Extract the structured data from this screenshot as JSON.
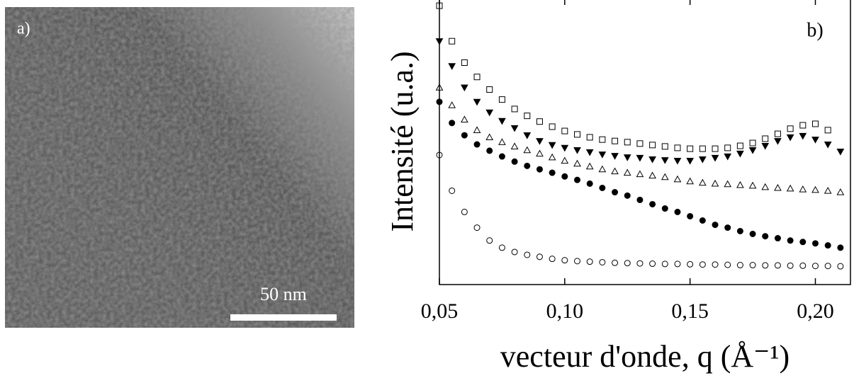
{
  "image_panel": {
    "label": "a)",
    "scale_bar": "50 nm"
  },
  "chart_data": {
    "type": "scatter",
    "panel_label": "b)",
    "x_label": "vecteur d'onde, q (Å⁻¹)",
    "y_label": "Intensité (u.a.)",
    "xlim": [
      0.05,
      0.214
    ],
    "ylim": [
      0,
      100
    ],
    "xticks": [
      {
        "value": 0.05,
        "label": "0,05"
      },
      {
        "value": 0.1,
        "label": "0,10"
      },
      {
        "value": 0.15,
        "label": "0,15"
      },
      {
        "value": 0.2,
        "label": "0,20"
      }
    ],
    "x": [
      0.05,
      0.055,
      0.06,
      0.065,
      0.07,
      0.075,
      0.08,
      0.085,
      0.09,
      0.095,
      0.1,
      0.105,
      0.11,
      0.115,
      0.12,
      0.125,
      0.13,
      0.135,
      0.14,
      0.145,
      0.15,
      0.155,
      0.16,
      0.165,
      0.17,
      0.175,
      0.18,
      0.185,
      0.19,
      0.195,
      0.2,
      0.205,
      0.21
    ],
    "series": [
      {
        "color": "#000",
        "marker": "circle",
        "filled": false,
        "values": [
          45.3,
          32.8,
          25.4,
          19.9,
          15.4,
          12.9,
          11.4,
          10.4,
          9.7,
          9.0,
          8.5,
          8.2,
          8.0,
          7.8,
          7.6,
          7.5,
          7.4,
          7.3,
          7.2,
          7.2,
          7.1,
          7.0,
          7.0,
          6.9,
          6.8,
          6.8,
          6.7,
          6.7,
          6.6,
          6.6,
          6.5,
          6.5,
          6.4
        ]
      },
      {
        "color": "#000",
        "marker": "circle",
        "filled": true,
        "values": [
          63.9,
          56.5,
          52.2,
          49.0,
          46.8,
          44.8,
          43.0,
          41.5,
          40.3,
          39.1,
          37.8,
          36.6,
          35.3,
          33.8,
          32.3,
          31.1,
          29.6,
          28.1,
          26.6,
          25.4,
          23.9,
          22.4,
          20.9,
          19.9,
          18.7,
          17.7,
          16.9,
          16.2,
          15.4,
          14.9,
          14.4,
          13.7,
          12.9
        ]
      },
      {
        "color": "#000",
        "marker": "triangle-up",
        "filled": false,
        "values": [
          68.9,
          62.7,
          57.7,
          54.0,
          51.5,
          49.8,
          48.3,
          47.0,
          45.8,
          44.5,
          43.3,
          42.3,
          41.3,
          40.3,
          39.6,
          39.1,
          38.6,
          38.1,
          37.6,
          36.8,
          36.1,
          35.6,
          35.3,
          35.1,
          34.8,
          34.6,
          34.1,
          33.8,
          33.6,
          33.3,
          33.1,
          32.8,
          32.3
        ]
      },
      {
        "color": "#000",
        "marker": "triangle-down",
        "filled": true,
        "values": [
          85.1,
          76.4,
          68.9,
          63.9,
          60.2,
          57.2,
          54.7,
          52.2,
          50.2,
          48.8,
          47.8,
          47.0,
          46.3,
          45.5,
          45.0,
          44.5,
          44.3,
          43.8,
          43.5,
          43.3,
          43.3,
          43.8,
          44.3,
          44.8,
          45.8,
          47.0,
          48.5,
          50.2,
          51.5,
          52.0,
          50.7,
          49.0,
          46.5
        ]
      },
      {
        "color": "#000",
        "marker": "square",
        "filled": false,
        "values": [
          97.5,
          85.1,
          77.6,
          72.6,
          68.2,
          64.7,
          61.4,
          59.0,
          57.0,
          55.2,
          53.7,
          52.5,
          51.5,
          50.7,
          50.2,
          49.8,
          49.3,
          48.8,
          48.3,
          47.8,
          47.5,
          47.5,
          47.5,
          47.8,
          48.5,
          49.5,
          51.0,
          52.7,
          54.5,
          55.7,
          56.2,
          54.0,
          null
        ]
      }
    ]
  }
}
